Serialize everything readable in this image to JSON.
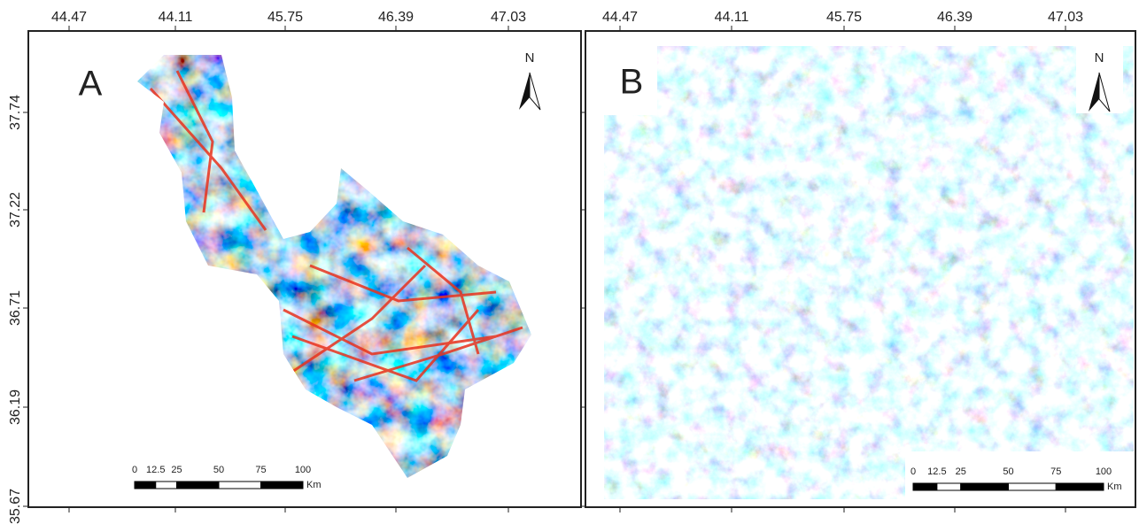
{
  "panels": [
    {
      "label": "A",
      "north": "N",
      "x_ticks": [
        "44.47",
        "44.11",
        "45.75",
        "46.39",
        "47.03"
      ],
      "y_ticks": [
        "37.74",
        "37.22",
        "36.71",
        "36.19",
        "35.67"
      ],
      "scale": {
        "labels": [
          "0",
          "12.5",
          "25",
          "50",
          "75",
          "100"
        ],
        "unit": "Km"
      }
    },
    {
      "label": "B",
      "north": "N",
      "x_ticks": [
        "44.47",
        "44.11",
        "45.75",
        "46.39",
        "47.03"
      ],
      "scale": {
        "labels": [
          "0",
          "12.5",
          "25",
          "50",
          "75",
          "100"
        ],
        "unit": "Km"
      }
    }
  ]
}
